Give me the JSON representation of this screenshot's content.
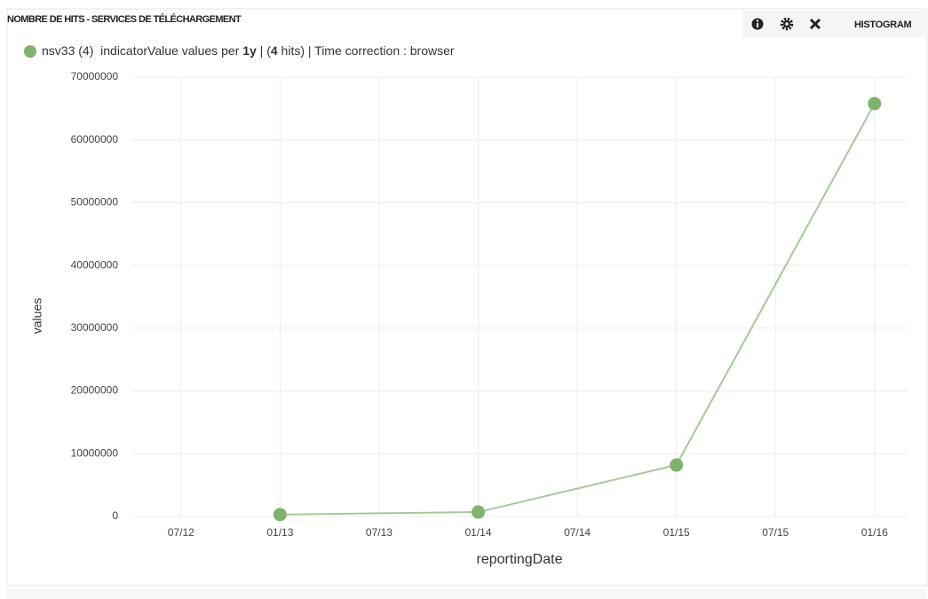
{
  "panel": {
    "title": "NOMBRE DE HITS - SERVICES DE TÉLÉCHARGEMENT",
    "mode": "HISTOGRAM"
  },
  "legend_parts": [
    {
      "text": "indicatorValue values per "
    },
    {
      "text": "1y",
      "bold": true
    },
    {
      "text": " | ("
    },
    {
      "text": "4",
      "bold": true
    },
    {
      "text": " hits) | Time correction : browser"
    }
  ],
  "chart_data": {
    "type": "line",
    "x": [
      "01/13",
      "01/14",
      "01/15",
      "01/16"
    ],
    "series": [
      {
        "name": "nsv33 (4)",
        "color": "#7eb26d",
        "values": [
          300000,
          700000,
          8200000,
          65800000
        ]
      }
    ],
    "xlim": [
      "04/12",
      "03/16"
    ],
    "xticks": [
      "07/12",
      "01/13",
      "07/13",
      "01/14",
      "07/14",
      "01/15",
      "07/15",
      "01/16"
    ],
    "ylim": [
      0,
      70000000
    ],
    "yticks": [
      0,
      10000000,
      20000000,
      30000000,
      40000000,
      50000000,
      60000000,
      70000000
    ],
    "xlabel": "reportingDate",
    "ylabel": "values",
    "grid": true
  }
}
